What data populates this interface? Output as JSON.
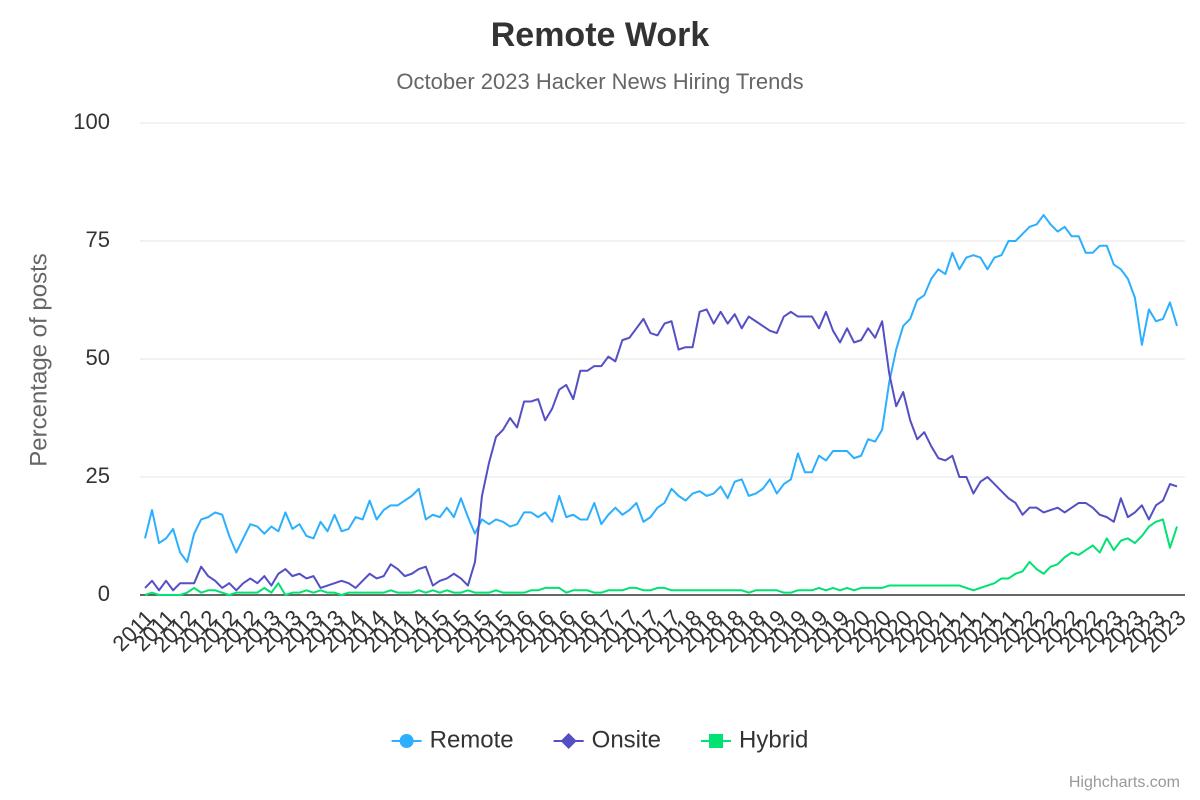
{
  "chart_data": {
    "type": "line",
    "title": "Remote Work",
    "subtitle": "October 2023 Hacker News Hiring Trends",
    "y_axis_label": "Percentage of posts",
    "credits": "Highcharts.com",
    "categories": [
      "2011",
      null,
      null,
      "2011",
      null,
      null,
      "2012",
      null,
      null,
      "2012",
      null,
      null,
      "2012",
      null,
      null,
      "2012",
      null,
      null,
      "2013",
      null,
      null,
      "2013",
      null,
      null,
      "2013",
      null,
      null,
      "2013",
      null,
      null,
      "2014",
      null,
      null,
      "2014",
      null,
      null,
      "2014",
      null,
      null,
      "2014",
      null,
      null,
      "2015",
      null,
      null,
      "2015",
      null,
      null,
      "2015",
      null,
      null,
      "2015",
      null,
      null,
      "2016",
      null,
      null,
      "2016",
      null,
      null,
      "2016",
      null,
      null,
      "2016",
      null,
      null,
      "2017",
      null,
      null,
      "2017",
      null,
      null,
      "2017",
      null,
      null,
      "2017",
      null,
      null,
      "2018",
      null,
      null,
      "2018",
      null,
      null,
      "2018",
      null,
      null,
      "2018",
      null,
      null,
      "2019",
      null,
      null,
      "2019",
      null,
      null,
      "2019",
      null,
      null,
      "2019",
      null,
      null,
      "2020",
      null,
      null,
      "2020",
      null,
      null,
      "2020",
      null,
      null,
      "2020",
      null,
      null,
      "2021",
      null,
      null,
      "2021",
      null,
      null,
      "2021",
      null,
      null,
      "2021",
      null,
      null,
      "2022",
      null,
      null,
      "2022",
      null,
      null,
      "2022",
      null,
      null,
      "2022",
      null,
      null,
      "2023",
      null,
      null,
      "2023",
      null,
      null,
      "2023",
      null,
      null,
      "2023"
    ],
    "series": [
      {
        "name": "Remote",
        "color": "#2caffe",
        "marker": "circle",
        "values": [
          12,
          18,
          11,
          12,
          14,
          9,
          7,
          13,
          16,
          16.5,
          17.5,
          17,
          12.5,
          9,
          12,
          15,
          14.5,
          13,
          14.5,
          13.5,
          17.5,
          14,
          15,
          12.5,
          12,
          15.5,
          13.5,
          17,
          13.5,
          14,
          16.5,
          16,
          20,
          16,
          18,
          19,
          19,
          20,
          21,
          22.5,
          16,
          17,
          16.5,
          18.5,
          16.5,
          20.5,
          16.5,
          13,
          16,
          15,
          16,
          15.5,
          14.5,
          15,
          17.5,
          17.5,
          16.5,
          17.5,
          15.5,
          21,
          16.5,
          17,
          16,
          16,
          19.5,
          15,
          17,
          18.5,
          17,
          18,
          19.5,
          15.5,
          16.5,
          18.5,
          19.5,
          22.5,
          21,
          20,
          21.5,
          22,
          21,
          21.5,
          23,
          20.5,
          24,
          24.5,
          21,
          21.5,
          22.5,
          24.5,
          21.5,
          23.5,
          24.5,
          30,
          26,
          26,
          29.5,
          28.5,
          30.5,
          30.5,
          30.5,
          29,
          29.5,
          33,
          32.5,
          35,
          45,
          52,
          57,
          58.5,
          62.5,
          63.5,
          67,
          69,
          68,
          72.5,
          69,
          71.5,
          72,
          71.5,
          69,
          71.5,
          72,
          75,
          75,
          76.5,
          78,
          78.5,
          80.5,
          78.5,
          77,
          78,
          76,
          76,
          72.5,
          72.5,
          74,
          74,
          70,
          69,
          67,
          63,
          53,
          60.5,
          58,
          58.5,
          62,
          57
        ]
      },
      {
        "name": "Onsite",
        "color": "#544fc5",
        "marker": "diamond",
        "values": [
          1.5,
          3,
          1,
          3,
          1,
          2.5,
          2.5,
          2.5,
          6,
          4,
          3,
          1.5,
          2.5,
          1,
          2.5,
          3.5,
          2.5,
          4,
          2,
          4.5,
          5.5,
          4,
          4.5,
          3.5,
          4,
          1.5,
          2,
          2.5,
          3,
          2.5,
          1.5,
          3,
          4.5,
          3.5,
          4,
          6.5,
          5.5,
          4,
          4.5,
          5.5,
          6,
          2,
          3,
          3.5,
          4.5,
          3.5,
          2,
          7,
          21,
          28,
          33.5,
          35,
          37.5,
          35.5,
          41,
          41,
          41.5,
          37,
          39.5,
          43.5,
          44.5,
          41.5,
          47.5,
          47.5,
          48.5,
          48.5,
          50.5,
          49.5,
          54,
          54.5,
          56.5,
          58.5,
          55.5,
          55,
          57.5,
          58,
          52,
          52.5,
          52.5,
          60,
          60.5,
          57.5,
          60,
          57.5,
          59.5,
          56.5,
          59,
          58,
          57,
          56,
          55.5,
          59,
          60,
          59,
          59,
          59,
          56.5,
          60,
          56,
          53.5,
          56.5,
          53.5,
          54,
          56.5,
          54.5,
          58,
          47,
          40,
          43,
          37,
          33,
          34.5,
          31.5,
          29,
          28.5,
          29.5,
          25,
          25,
          21.5,
          24,
          25,
          23.5,
          22,
          20.5,
          19.5,
          17,
          18.5,
          18.5,
          17.5,
          18,
          18.5,
          17.5,
          18.5,
          19.5,
          19.5,
          18.5,
          17,
          16.5,
          15.5,
          20.5,
          16.5,
          17.5,
          19,
          16,
          19,
          20,
          23.5,
          23
        ]
      },
      {
        "name": "Hybrid",
        "color": "#00e272",
        "marker": "square",
        "values": [
          0,
          0.5,
          0,
          0,
          0,
          0,
          0.5,
          1.5,
          0.5,
          1,
          1,
          0.5,
          0,
          0.5,
          0.5,
          0.5,
          0.5,
          1.5,
          0.5,
          2.5,
          0,
          0.5,
          0.5,
          1,
          0.5,
          1,
          0.5,
          0.5,
          0,
          0.5,
          0.5,
          0.5,
          0.5,
          0.5,
          0.5,
          1,
          0.5,
          0.5,
          0.5,
          1,
          0.5,
          1,
          0.5,
          1,
          0.5,
          0.5,
          1,
          0.5,
          0.5,
          0.5,
          1,
          0.5,
          0.5,
          0.5,
          0.5,
          1,
          1,
          1.5,
          1.5,
          1.5,
          0.5,
          1,
          1,
          1,
          0.5,
          0.5,
          1,
          1,
          1,
          1.5,
          1.5,
          1,
          1,
          1.5,
          1.5,
          1,
          1,
          1,
          1,
          1,
          1,
          1,
          1,
          1,
          1,
          1,
          0.5,
          1,
          1,
          1,
          1,
          0.5,
          0.5,
          1,
          1,
          1,
          1.5,
          1,
          1.5,
          1,
          1.5,
          1,
          1.5,
          1.5,
          1.5,
          1.5,
          2,
          2,
          2,
          2,
          2,
          2,
          2,
          2,
          2,
          2,
          2,
          1.5,
          1,
          1.5,
          2,
          2.5,
          3.5,
          3.5,
          4.5,
          5,
          7,
          5.5,
          4.5,
          6,
          6.5,
          8,
          9,
          8.5,
          9.5,
          10.5,
          9,
          12,
          9.5,
          11.5,
          12,
          11,
          12.5,
          14.5,
          15.5,
          16,
          10,
          14.5
        ]
      }
    ],
    "ylim": [
      0,
      100
    ],
    "yticks": [
      0,
      25,
      50,
      75,
      100
    ],
    "grid": true,
    "legend": "bottom"
  }
}
